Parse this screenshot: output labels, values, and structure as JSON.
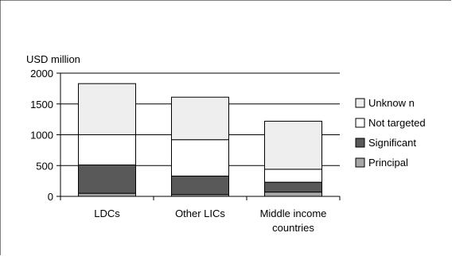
{
  "chart_data": {
    "type": "bar",
    "stacked": true,
    "title": "",
    "ylabel": "USD million",
    "xlabel": "",
    "ylim": [
      0,
      2000
    ],
    "yticks": [
      0,
      500,
      1000,
      1500,
      2000
    ],
    "tick_labels": [
      "0",
      "500",
      "1000",
      "1500",
      "2000"
    ],
    "categories": [
      [
        "LDCs"
      ],
      [
        "Other LICs"
      ],
      [
        "Middle income",
        "countries"
      ]
    ],
    "series": [
      {
        "name": "Principal",
        "color": "#a6a6a6",
        "values": [
          50,
          30,
          70
        ]
      },
      {
        "name": "Significant",
        "color": "#595959",
        "values": [
          460,
          300,
          160
        ]
      },
      {
        "name": "Not targeted",
        "color": "#ffffff",
        "values": [
          490,
          590,
          210
        ]
      },
      {
        "name": "Unknow n",
        "color": "#eeeeee",
        "values": [
          830,
          690,
          780
        ]
      }
    ],
    "legend_order": [
      "Unknow n",
      "Not targeted",
      "Significant",
      "Principal"
    ],
    "legend_position": "right",
    "grid": true
  }
}
